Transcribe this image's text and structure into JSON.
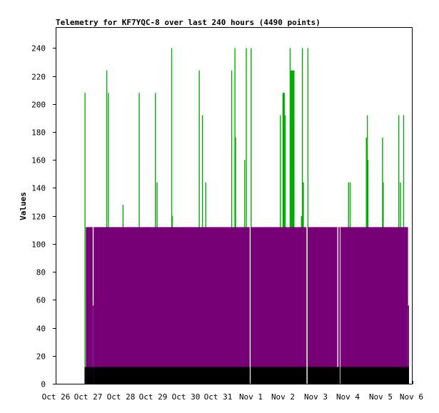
{
  "chart_data": {
    "type": "bar",
    "title": "Telemetry for KF7YQC-8 over last 240 hours (4490 points)",
    "ylabel": "Values",
    "xlabel": "",
    "x_range_days": [
      0,
      11
    ],
    "ylim": [
      0,
      255
    ],
    "x_ticks": [
      {
        "label": "Oct 26",
        "day": 0
      },
      {
        "label": "Oct 27",
        "day": 1
      },
      {
        "label": "Oct 28",
        "day": 2
      },
      {
        "label": "Oct 29",
        "day": 3
      },
      {
        "label": "Oct 30",
        "day": 4
      },
      {
        "label": "Oct 31",
        "day": 5
      },
      {
        "label": "Nov 1",
        "day": 6
      },
      {
        "label": "Nov 2",
        "day": 7
      },
      {
        "label": "Nov 3",
        "day": 8
      },
      {
        "label": "Nov 4",
        "day": 9
      },
      {
        "label": "Nov 5",
        "day": 10
      },
      {
        "label": "Nov 6",
        "day": 11
      }
    ],
    "y_ticks": [
      0,
      20,
      40,
      60,
      80,
      100,
      120,
      140,
      160,
      180,
      200,
      220,
      240
    ],
    "grid": false,
    "legend": "none",
    "colors": {
      "green": "#00aa00",
      "purple": "#770077",
      "black": "#000000"
    },
    "series": [
      {
        "color": "green",
        "segments": [
          [
            0.89,
            0.92,
            208
          ],
          [
            1.56,
            1.59,
            224
          ],
          [
            1.61,
            1.64,
            208
          ],
          [
            2.06,
            2.09,
            128
          ],
          [
            2.56,
            2.59,
            208
          ],
          [
            3.06,
            3.09,
            208
          ],
          [
            3.11,
            3.14,
            144
          ],
          [
            3.56,
            3.59,
            240
          ],
          [
            3.59,
            3.61,
            120
          ],
          [
            4.41,
            4.44,
            224
          ],
          [
            4.51,
            4.54,
            192
          ],
          [
            4.61,
            4.64,
            144
          ],
          [
            5.41,
            5.44,
            224
          ],
          [
            5.51,
            5.54,
            240
          ],
          [
            5.53,
            5.56,
            176
          ],
          [
            5.81,
            5.84,
            160
          ],
          [
            5.86,
            5.89,
            240
          ],
          [
            6.01,
            6.04,
            240
          ],
          [
            6.91,
            6.94,
            192
          ],
          [
            6.99,
            7.06,
            208
          ],
          [
            7.06,
            7.09,
            192
          ],
          [
            7.21,
            7.24,
            240
          ],
          [
            7.24,
            7.36,
            224
          ],
          [
            7.56,
            7.59,
            120
          ],
          [
            7.59,
            7.62,
            240
          ],
          [
            7.62,
            7.65,
            144
          ],
          [
            7.76,
            7.79,
            240
          ],
          [
            9.01,
            9.04,
            144
          ],
          [
            9.06,
            9.09,
            144
          ],
          [
            9.56,
            9.59,
            176
          ],
          [
            9.59,
            9.62,
            192
          ],
          [
            9.61,
            9.64,
            160
          ],
          [
            10.06,
            10.09,
            176
          ],
          [
            10.08,
            10.11,
            144
          ],
          [
            10.56,
            10.59,
            192
          ],
          [
            10.61,
            10.64,
            144
          ],
          [
            10.71,
            10.74,
            192
          ]
        ]
      },
      {
        "color": "purple",
        "segments": [
          [
            0.93,
            1.14,
            112
          ],
          [
            1.14,
            1.17,
            56
          ],
          [
            1.17,
            5.98,
            112
          ],
          [
            6.01,
            7.73,
            112
          ],
          [
            7.77,
            8.68,
            112
          ],
          [
            8.71,
            8.76,
            112
          ],
          [
            8.78,
            10.86,
            112
          ],
          [
            10.86,
            10.89,
            56
          ]
        ]
      },
      {
        "color": "black",
        "segments": [
          [
            0.89,
            0.93,
            12
          ],
          [
            0.93,
            1.17,
            12
          ],
          [
            1.17,
            5.98,
            12
          ],
          [
            6.01,
            7.73,
            12
          ],
          [
            7.77,
            8.76,
            12
          ],
          [
            8.78,
            10.89,
            12
          ]
        ]
      }
    ]
  }
}
